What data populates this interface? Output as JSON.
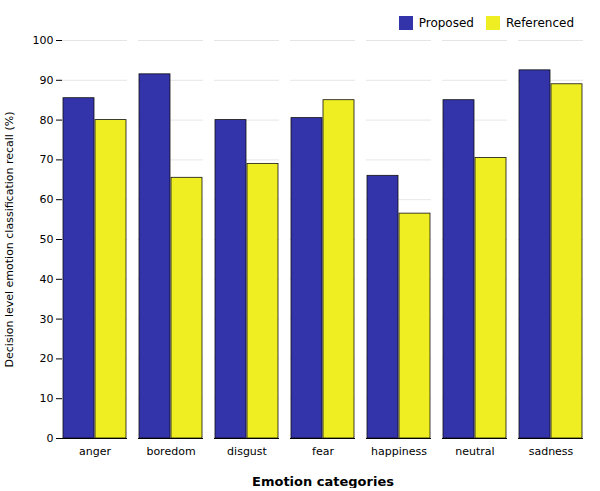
{
  "chart_data": {
    "type": "bar",
    "categories": [
      "anger",
      "boredom",
      "disgust",
      "fear",
      "happiness",
      "neutral",
      "sadness"
    ],
    "series": [
      {
        "name": "Proposed",
        "color": "#3333AA",
        "values": [
          85.5,
          91.5,
          80.0,
          80.5,
          66.0,
          85.0,
          92.5
        ]
      },
      {
        "name": "Referenced",
        "color": "#EEEE22",
        "values": [
          80.0,
          65.5,
          69.0,
          85.0,
          56.5,
          70.5,
          89.0
        ]
      }
    ],
    "xlabel": "Emotion categories",
    "ylabel": "Decision level emotion classification recall (%)",
    "ylim": [
      0,
      100
    ],
    "yticks": [
      0,
      10,
      20,
      30,
      40,
      50,
      60,
      70,
      80,
      90,
      100
    ],
    "grid": true,
    "legend": "upper right"
  }
}
